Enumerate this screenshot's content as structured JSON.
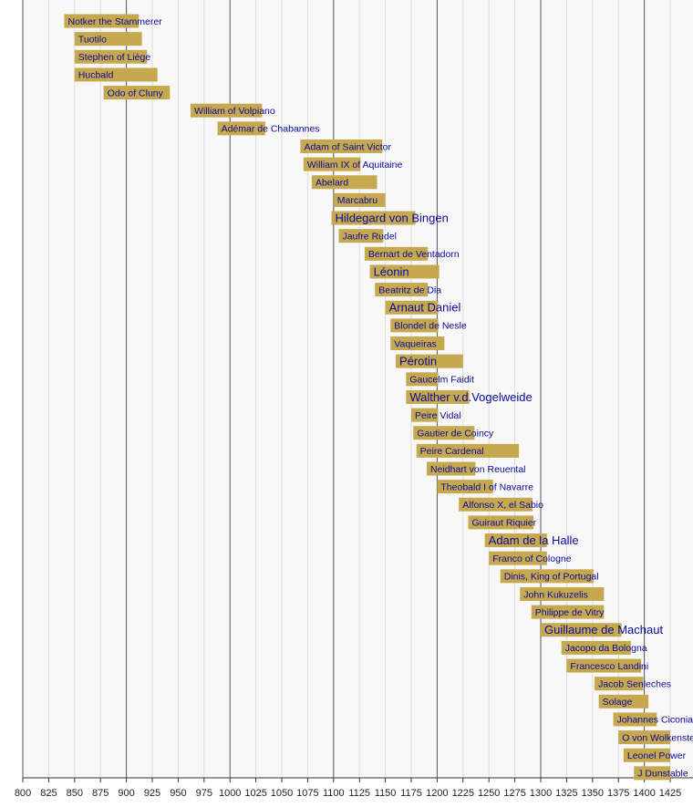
{
  "chart_data": {
    "type": "timeline",
    "categories": [
      "Notker the Stammerer",
      "Tuotilo",
      "Stephen of Liège",
      "Hucbald",
      "Odo of Cluny",
      "William of Volpiano",
      "Adémar de Chabannes",
      "Adam of Saint Victor",
      "William IX of Aquitaine",
      "Abelard",
      "Marcabru",
      "Hildegard von Bingen",
      "Jaufre Rudel",
      "Bernart de Ventadorn",
      "Léonin",
      "Beatritz de Dia",
      "Arnaut Daniel",
      "Blondel de Nesle",
      "Vaqueiras",
      "Pérotin",
      "Gaucelm Faidit",
      "Walther v.d.Vogelweide",
      "Peire Vidal",
      "Gautier de Coincy",
      "Peire Cardenal",
      "Neidhart von Reuental",
      "Theobald I of Navarre",
      "Alfonso X, el Sabio",
      "Guiraut Riquier",
      "Adam de la Halle",
      "Franco of Cologne",
      "Dinis, King of Portugal",
      "John Kukuzelis",
      "Philippe de Vitry",
      "Guillaume de Machaut",
      "Jacopo da Bologna",
      "Francesco Landini",
      "Jacob Senleches",
      "Solage",
      "Johannes Ciconia",
      "O von Wolkenstein",
      "Leonel Power",
      "J Dunstable"
    ],
    "start": [
      840,
      850,
      850,
      850,
      878,
      962,
      988,
      1068,
      1071,
      1079,
      1100,
      1098,
      1105,
      1130,
      1135,
      1140,
      1150,
      1155,
      1155,
      1160,
      1170,
      1170,
      1175,
      1177,
      1180,
      1190,
      1200,
      1221,
      1230,
      1246,
      1250,
      1261,
      1280,
      1291,
      1300,
      1320,
      1325,
      1352,
      1356,
      1370,
      1375,
      1380,
      1390
    ],
    "end": [
      912,
      915,
      920,
      930,
      942,
      1031,
      1034,
      1147,
      1126,
      1142,
      1150,
      1179,
      1148,
      1191,
      1202,
      1191,
      1201,
      1201,
      1207,
      1225,
      1201,
      1231,
      1201,
      1236,
      1279,
      1237,
      1254,
      1292,
      1293,
      1306,
      1306,
      1351,
      1361,
      1361,
      1378,
      1387,
      1397,
      1399,
      1404,
      1412,
      1425,
      1425,
      1425
    ],
    "large_label": [
      false,
      false,
      false,
      false,
      false,
      false,
      false,
      false,
      false,
      false,
      false,
      true,
      false,
      false,
      true,
      false,
      true,
      false,
      false,
      true,
      false,
      true,
      false,
      false,
      false,
      false,
      false,
      false,
      false,
      true,
      false,
      false,
      false,
      false,
      true,
      false,
      false,
      false,
      false,
      false,
      false,
      false,
      false
    ],
    "color": "#c6a84e",
    "label_color": "#0a0a9a",
    "xlim": [
      800,
      1447
    ],
    "xticks": [
      800,
      825,
      850,
      875,
      900,
      925,
      950,
      975,
      1000,
      1025,
      1050,
      1075,
      1100,
      1125,
      1150,
      1175,
      1200,
      1225,
      1250,
      1275,
      1300,
      1325,
      1350,
      1375,
      1400,
      1425
    ],
    "grid": true
  }
}
